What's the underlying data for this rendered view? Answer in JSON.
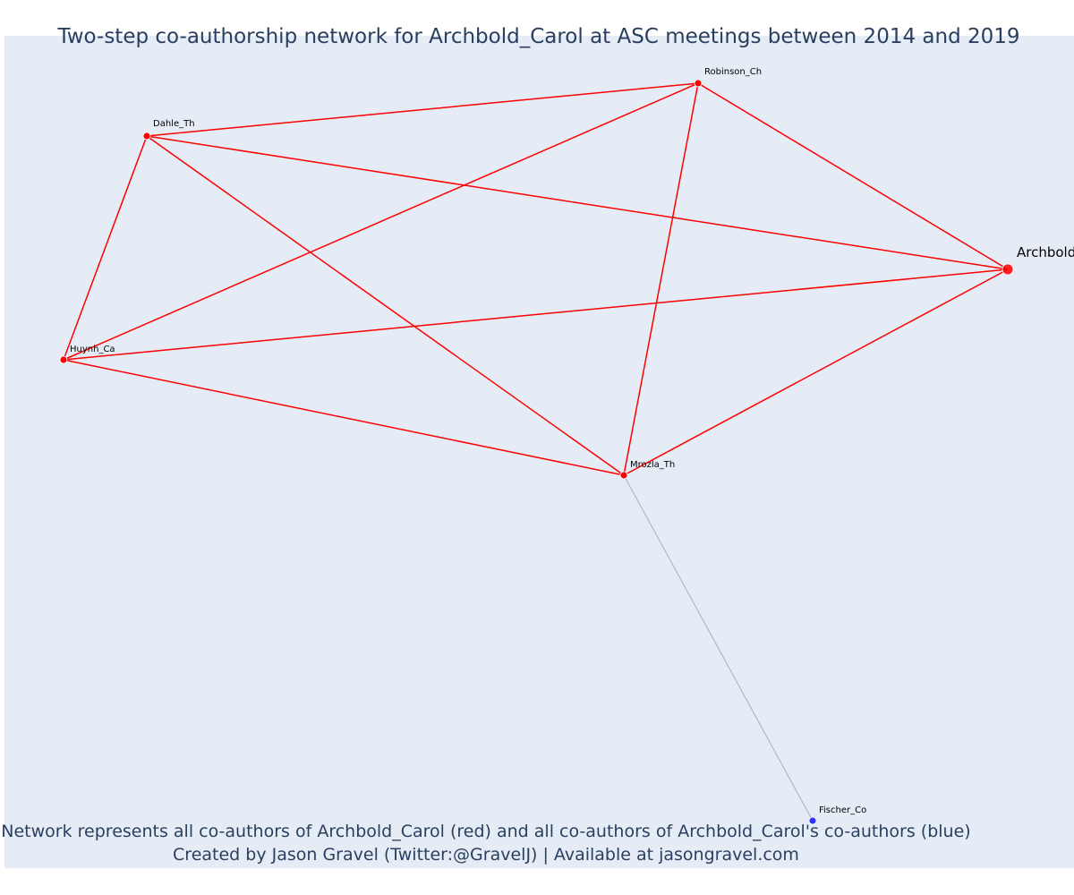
{
  "title": "Two-step co-authorship network for Archbold_Carol at ASC meetings between 2014 and 2019",
  "footer": {
    "line1": "Network represents all co-authors of Archbold_Carol (red) and all co-authors of Archbold_Carol's co-authors (blue)",
    "line2": "Created by Jason Gravel (Twitter:@GravelJ) | Available at jasongravel.com"
  },
  "colors": {
    "background": "#e5ecf6",
    "direct": "#ff0000",
    "indirect": "#3333ff",
    "indirect_edge": "#a8aec6",
    "text": "#2a3f5f"
  },
  "nodes": [
    {
      "id": "Archbold_Carol",
      "label": "Archbold_Carol",
      "group": "focal"
    },
    {
      "id": "Robinson_Ch",
      "label": "Robinson_Ch",
      "group": "direct"
    },
    {
      "id": "Dahle_Th",
      "label": "Dahle_Th",
      "group": "direct"
    },
    {
      "id": "Huynh_Ca",
      "label": "Huynh_Ca",
      "group": "direct"
    },
    {
      "id": "Mrozla_Th",
      "label": "Mrozla_Th",
      "group": "direct"
    },
    {
      "id": "Fischer_Co",
      "label": "Fischer_Co",
      "group": "indirect"
    }
  ],
  "edges": [
    {
      "source": "Dahle_Th",
      "target": "Robinson_Ch",
      "group": "direct"
    },
    {
      "source": "Dahle_Th",
      "target": "Archbold_Carol",
      "group": "direct"
    },
    {
      "source": "Dahle_Th",
      "target": "Huynh_Ca",
      "group": "direct"
    },
    {
      "source": "Dahle_Th",
      "target": "Mrozla_Th",
      "group": "direct"
    },
    {
      "source": "Robinson_Ch",
      "target": "Huynh_Ca",
      "group": "direct"
    },
    {
      "source": "Robinson_Ch",
      "target": "Mrozla_Th",
      "group": "direct"
    },
    {
      "source": "Robinson_Ch",
      "target": "Archbold_Carol",
      "group": "direct"
    },
    {
      "source": "Huynh_Ca",
      "target": "Archbold_Carol",
      "group": "direct"
    },
    {
      "source": "Huynh_Ca",
      "target": "Mrozla_Th",
      "group": "direct"
    },
    {
      "source": "Mrozla_Th",
      "target": "Archbold_Carol",
      "group": "direct"
    },
    {
      "source": "Mrozla_Th",
      "target": "Fischer_Co",
      "group": "indirect"
    }
  ]
}
